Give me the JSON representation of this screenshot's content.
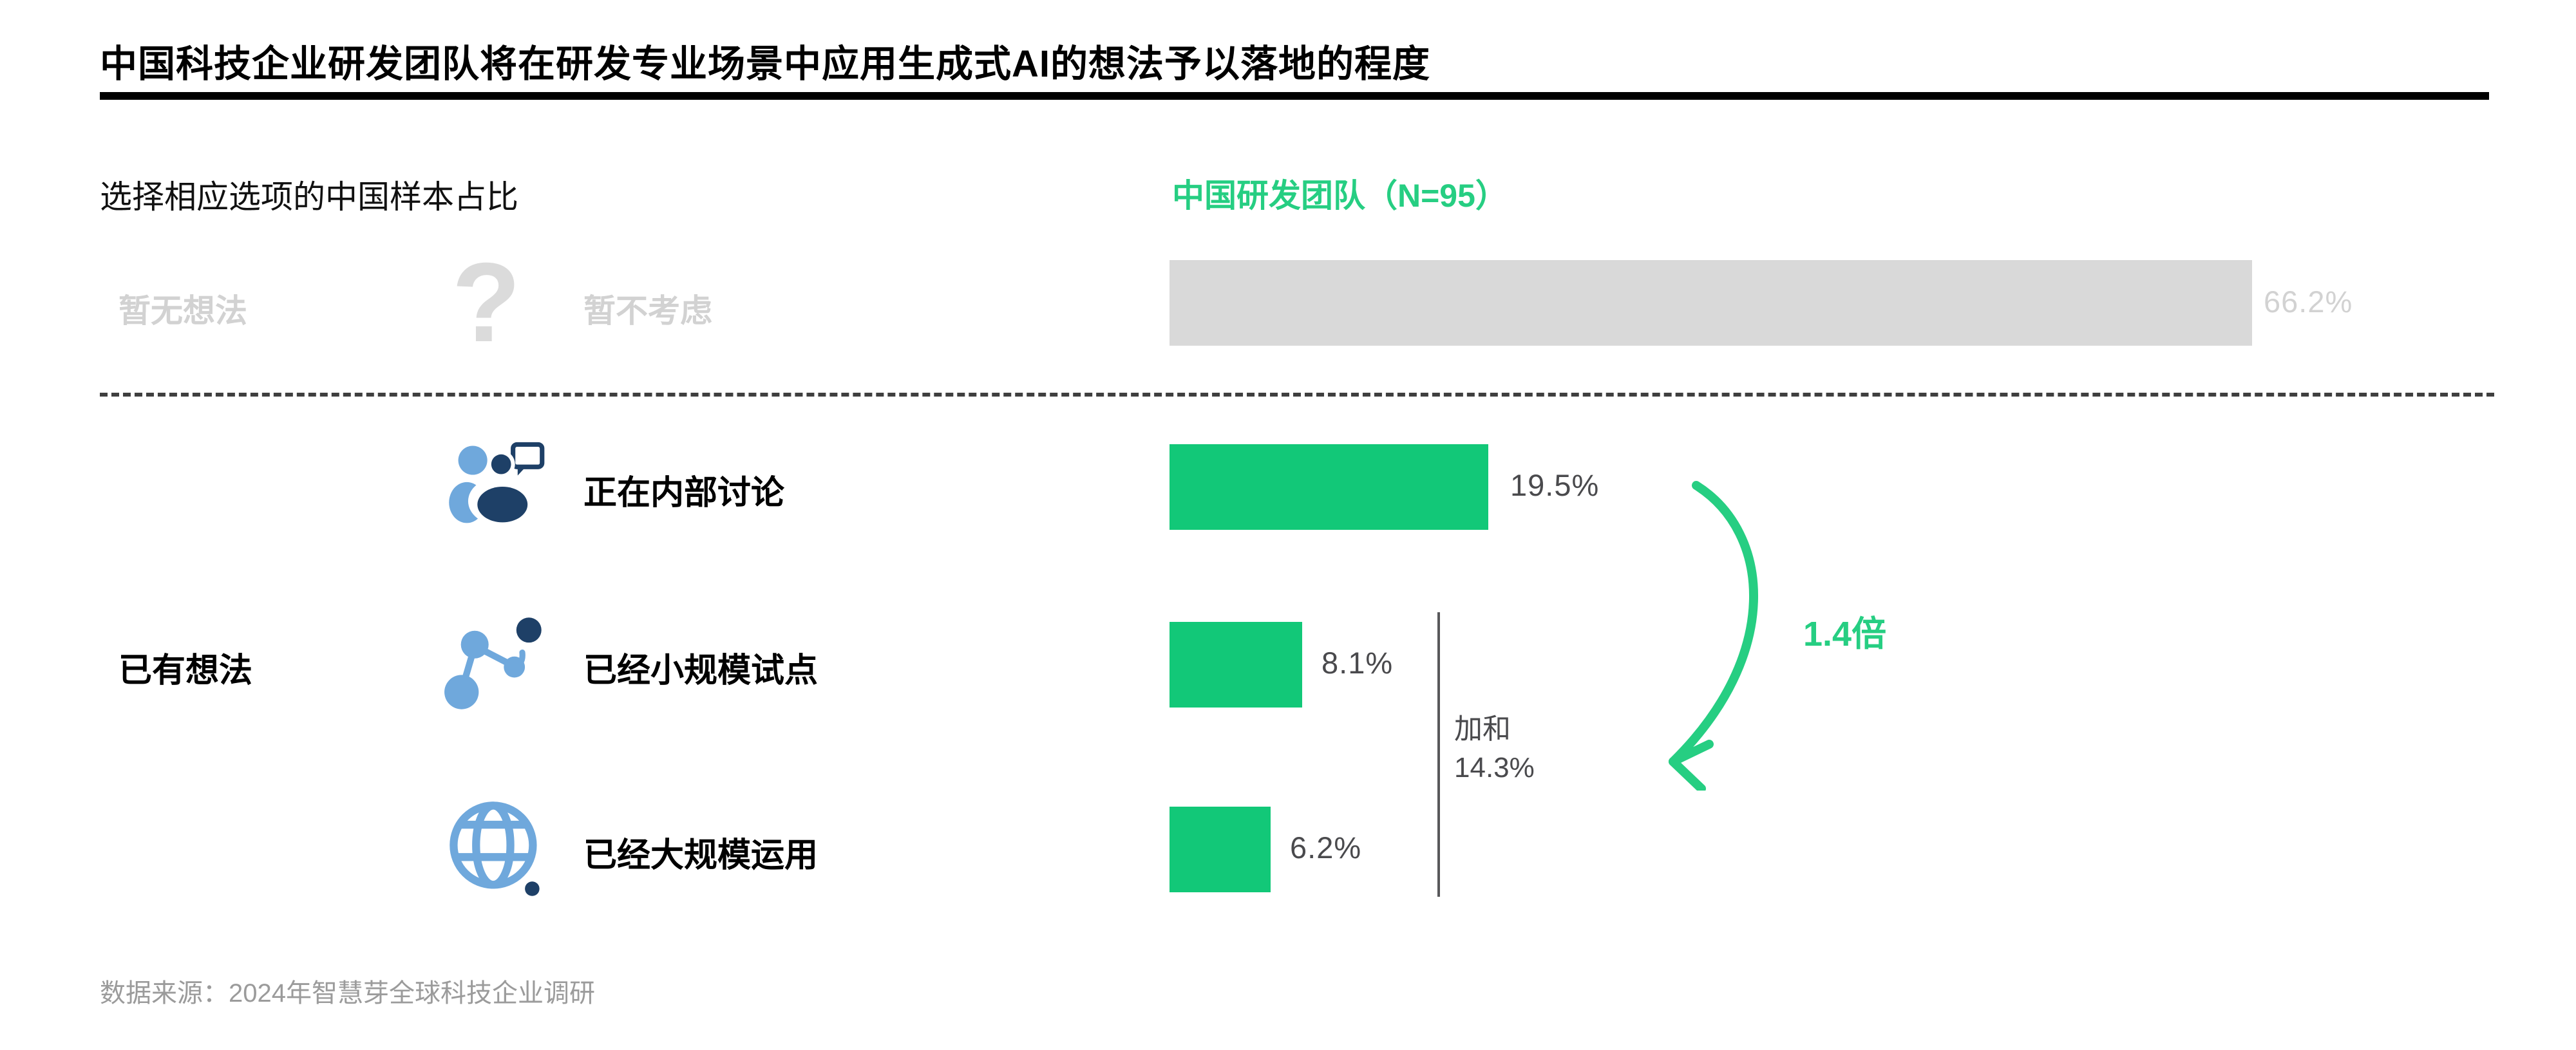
{
  "title": "中国科技企业研发团队将在研发专业场景中应用生成式AI的想法予以落地的程度",
  "subtitle_left": "选择相应选项的中国样本占比",
  "legend": "中国研发团队（N=95）",
  "no_idea_group": {
    "label": "暂无想法",
    "icon": "question-mark-icon",
    "row": {
      "label": "暂不考虑",
      "value": 66.2,
      "value_label": "66.2%"
    }
  },
  "has_idea_group": {
    "label": "已有想法",
    "rows": [
      {
        "icon": "discussion-icon",
        "label": "正在内部讨论",
        "value": 19.5,
        "value_label": "19.5%"
      },
      {
        "icon": "network-icon",
        "label": "已经小规模试点",
        "value": 8.1,
        "value_label": "8.1%"
      },
      {
        "icon": "globe-icon",
        "label": "已经大规模运用",
        "value": 6.2,
        "value_label": "6.2%"
      }
    ]
  },
  "sum_annotation": {
    "line1": "加和",
    "line2": "14.3%"
  },
  "multiplier_annotation": "1.4倍",
  "footer": "数据来源：2024年智慧芽全球科技企业调研",
  "colors": {
    "green_bar": "#12C878",
    "green_text": "#26CE82",
    "gray_bar": "#D9D9D9",
    "gray_text": "#D2D2D2",
    "gray_icon": "#DBDBDB",
    "value_text": "#4A4A4D",
    "light_blue": "#6FA8DC",
    "navy": "#1E4067",
    "footer_text": "#9B9B9B",
    "divider": "#3F3F3F",
    "rule": "#000000",
    "sum_line": "#58585A"
  },
  "chart_data": {
    "type": "bar",
    "orientation": "horizontal",
    "title": "中国科技企业研发团队将在研发专业场景中应用生成式AI的想法予以落地的程度",
    "subtitle": "选择相应选项的中国样本占比",
    "series_label": "中国研发团队（N=95）",
    "sample_size": 95,
    "categories": [
      "暂不考虑",
      "正在内部讨论",
      "已经小规模试点",
      "已经大规模运用"
    ],
    "values": [
      66.2,
      19.5,
      8.1,
      6.2
    ],
    "bar_colors": [
      "#D9D9D9",
      "#12C878",
      "#12C878",
      "#12C878"
    ],
    "groups": [
      {
        "label": "暂无想法",
        "categories": [
          "暂不考虑"
        ]
      },
      {
        "label": "已有想法",
        "categories": [
          "正在内部讨论",
          "已经小规模试点",
          "已经大规模运用"
        ]
      }
    ],
    "annotations": [
      {
        "text": "加和 14.3%",
        "applies_to": [
          "已经小规模试点",
          "已经大规模运用"
        ]
      },
      {
        "text": "1.4倍",
        "meaning": "正在内部讨论 (19.5%) 约为 加和 14.3% 的 1.4 倍"
      }
    ],
    "xlim": [
      0,
      70
    ],
    "grid": false,
    "legend_position": "top",
    "source": "数据来源：2024年智慧芽全球科技企业调研"
  }
}
